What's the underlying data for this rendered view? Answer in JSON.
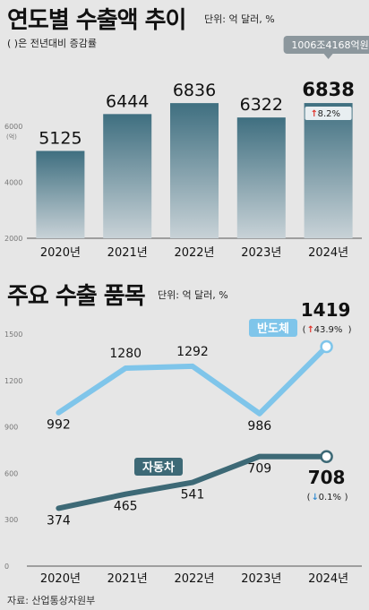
{
  "header1": {
    "title": "연도별 수출액 추이",
    "unit": "단위: 억 달러, %",
    "note": "( )은 전년대비 증감률"
  },
  "header2": {
    "title": "주요 수출 품목",
    "unit": "단위: 억 달러, %"
  },
  "source": "자료: 산업통상자원부",
  "colors": {
    "bar_top": "#3f6f80",
    "bar_bottom": "#c8d2d7",
    "semiconductor": "#7fc5ea",
    "automobile": "#3d6976",
    "up_arrow": "#e0342c",
    "down_arrow": "#3a8fd0"
  },
  "chart_data": [
    {
      "type": "bar",
      "title": "연도별 수출액 추이",
      "categories": [
        "2020년",
        "2021년",
        "2022년",
        "2023년",
        "2024년"
      ],
      "values": [
        5125,
        6444,
        6836,
        6322,
        6838
      ],
      "value_labels": [
        "5125",
        "6444",
        "6836",
        "6322",
        "6838"
      ],
      "ylim": [
        2000,
        7000
      ],
      "yticks": [
        2000,
        4000,
        6000
      ],
      "yunit_label": "(억)",
      "callout": "1006조4168억원",
      "highlight": {
        "value": "6838",
        "change": "8.2%",
        "direction": "up"
      }
    },
    {
      "type": "line",
      "title": "주요 수출 품목",
      "categories": [
        "2020년",
        "2021년",
        "2022년",
        "2023년",
        "2024년"
      ],
      "ylim": [
        0,
        1500
      ],
      "yticks": [
        0,
        300,
        600,
        900,
        1200,
        1500
      ],
      "series": [
        {
          "name": "반도체",
          "values": [
            992,
            1280,
            1292,
            986,
            1419
          ],
          "value_labels": [
            "992",
            "1280",
            "1292",
            "986",
            "1419"
          ],
          "last_change": "43.9%",
          "direction": "up"
        },
        {
          "name": "자동차",
          "values": [
            374,
            465,
            541,
            709,
            708
          ],
          "value_labels": [
            "374",
            "465",
            "541",
            "709",
            "708"
          ],
          "last_change": "0.1%",
          "direction": "down"
        }
      ]
    }
  ]
}
